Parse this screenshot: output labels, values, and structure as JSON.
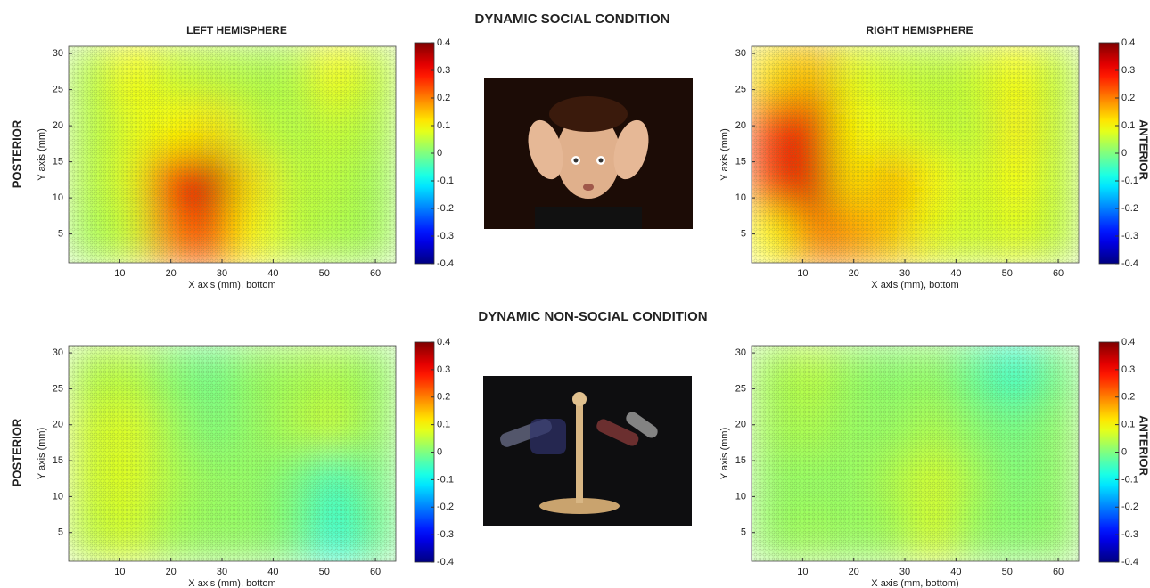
{
  "figure": {
    "conditions": [
      "DYNAMIC SOCIAL CONDITION",
      "DYNAMIC NON-SOCIAL CONDITION"
    ],
    "side_labels": [
      "POSTERIOR",
      "ANTERIOR"
    ]
  },
  "chart_data": [
    {
      "type": "heatmap",
      "title": "LEFT HEMISPHERE",
      "xlabel": "X axis (mm), bottom",
      "ylabel": "Y axis (mm)",
      "colormap": "jet",
      "x": [
        4,
        12,
        20,
        28,
        36,
        44,
        52,
        60
      ],
      "y": [
        4.75,
        12.25,
        19.75,
        27.25
      ],
      "z": [
        [
          0.03,
          0.06,
          0.2,
          0.25,
          0.1,
          0.05,
          0.04,
          0.03
        ],
        [
          0.04,
          0.08,
          0.28,
          0.34,
          0.12,
          0.05,
          0.05,
          0.03
        ],
        [
          0.04,
          0.08,
          0.1,
          0.12,
          0.06,
          0.04,
          0.06,
          0.04
        ],
        [
          0.04,
          0.1,
          0.06,
          0.05,
          0.04,
          0.04,
          0.1,
          0.05
        ]
      ],
      "xlim": [
        0,
        64
      ],
      "ylim": [
        1,
        31
      ],
      "xticks": [
        10,
        20,
        30,
        40,
        50,
        60
      ],
      "yticks": [
        5,
        10,
        15,
        20,
        25,
        30
      ],
      "clim": [
        -0.4,
        0.4
      ],
      "cticks": [
        0.4,
        0.3,
        0.2,
        0.1,
        0,
        -0.1,
        -0.2,
        -0.3,
        -0.4
      ]
    },
    {
      "type": "heatmap",
      "title": "RIGHT HEMISPHERE",
      "xlabel": "X axis (mm), bottom",
      "ylabel": "Y axis (mm)",
      "colormap": "jet",
      "x": [
        4,
        12,
        20,
        28,
        36,
        44,
        52,
        60
      ],
      "y": [
        4.75,
        12.25,
        19.75,
        27.25
      ],
      "z": [
        [
          0.1,
          0.2,
          0.18,
          0.14,
          0.08,
          0.06,
          0.08,
          0.05
        ],
        [
          0.25,
          0.33,
          0.12,
          0.16,
          0.1,
          0.06,
          0.1,
          0.05
        ],
        [
          0.25,
          0.32,
          0.1,
          0.08,
          0.06,
          0.05,
          0.11,
          0.05
        ],
        [
          0.12,
          0.16,
          0.08,
          0.06,
          0.05,
          0.06,
          0.1,
          0.05
        ]
      ],
      "xlim": [
        0,
        64
      ],
      "ylim": [
        1,
        31
      ],
      "xticks": [
        10,
        20,
        30,
        40,
        50,
        60
      ],
      "yticks": [
        5,
        10,
        15,
        20,
        25,
        30
      ],
      "clim": [
        -0.4,
        0.4
      ],
      "cticks": [
        0.4,
        0.3,
        0.2,
        0.1,
        0,
        -0.1,
        -0.2,
        -0.3,
        -0.4
      ]
    },
    {
      "type": "heatmap",
      "xlabel": "X axis (mm), bottom",
      "ylabel": "Y axis (mm)",
      "colormap": "jet",
      "x": [
        4,
        12,
        20,
        28,
        36,
        44,
        52,
        60
      ],
      "y": [
        4.75,
        12.25,
        19.75,
        27.25
      ],
      "z": [
        [
          0.05,
          0.07,
          0.03,
          0.02,
          0.02,
          0.0,
          -0.07,
          -0.01
        ],
        [
          0.06,
          0.08,
          0.04,
          0.02,
          0.02,
          0.0,
          -0.05,
          0.0
        ],
        [
          0.06,
          0.08,
          0.03,
          0.0,
          0.02,
          0.04,
          0.06,
          0.02
        ],
        [
          0.04,
          0.05,
          0.01,
          -0.01,
          0.02,
          0.03,
          0.04,
          0.02
        ]
      ],
      "xlim": [
        0,
        64
      ],
      "ylim": [
        1,
        31
      ],
      "xticks": [
        10,
        20,
        30,
        40,
        50,
        60
      ],
      "yticks": [
        5,
        10,
        15,
        20,
        25,
        30
      ],
      "clim": [
        -0.4,
        0.4
      ],
      "cticks": [
        0.4,
        0.3,
        0.2,
        0.1,
        0,
        -0.1,
        -0.2,
        -0.3,
        -0.4
      ]
    },
    {
      "type": "heatmap",
      "xlabel": "X axis (mm, bottom)",
      "ylabel": "Y axis (mm)",
      "colormap": "jet",
      "x": [
        4,
        12,
        20,
        28,
        36,
        44,
        52,
        60
      ],
      "y": [
        4.75,
        12.25,
        19.75,
        27.25
      ],
      "z": [
        [
          0.02,
          0.03,
          0.02,
          0.03,
          0.07,
          0.02,
          0.01,
          0.02
        ],
        [
          0.02,
          0.02,
          0.02,
          0.04,
          0.07,
          0.03,
          0.0,
          0.02
        ],
        [
          0.03,
          0.04,
          0.02,
          0.02,
          0.04,
          0.01,
          -0.01,
          0.02
        ],
        [
          0.03,
          0.05,
          0.02,
          0.01,
          0.02,
          -0.02,
          -0.06,
          0.0
        ]
      ],
      "xlim": [
        0,
        64
      ],
      "ylim": [
        1,
        31
      ],
      "xticks": [
        10,
        20,
        30,
        40,
        50,
        60
      ],
      "yticks": [
        5,
        10,
        15,
        20,
        25,
        30
      ],
      "clim": [
        -0.4,
        0.4
      ],
      "cticks": [
        0.4,
        0.3,
        0.2,
        0.1,
        0,
        -0.1,
        -0.2,
        -0.3,
        -0.4
      ]
    }
  ]
}
